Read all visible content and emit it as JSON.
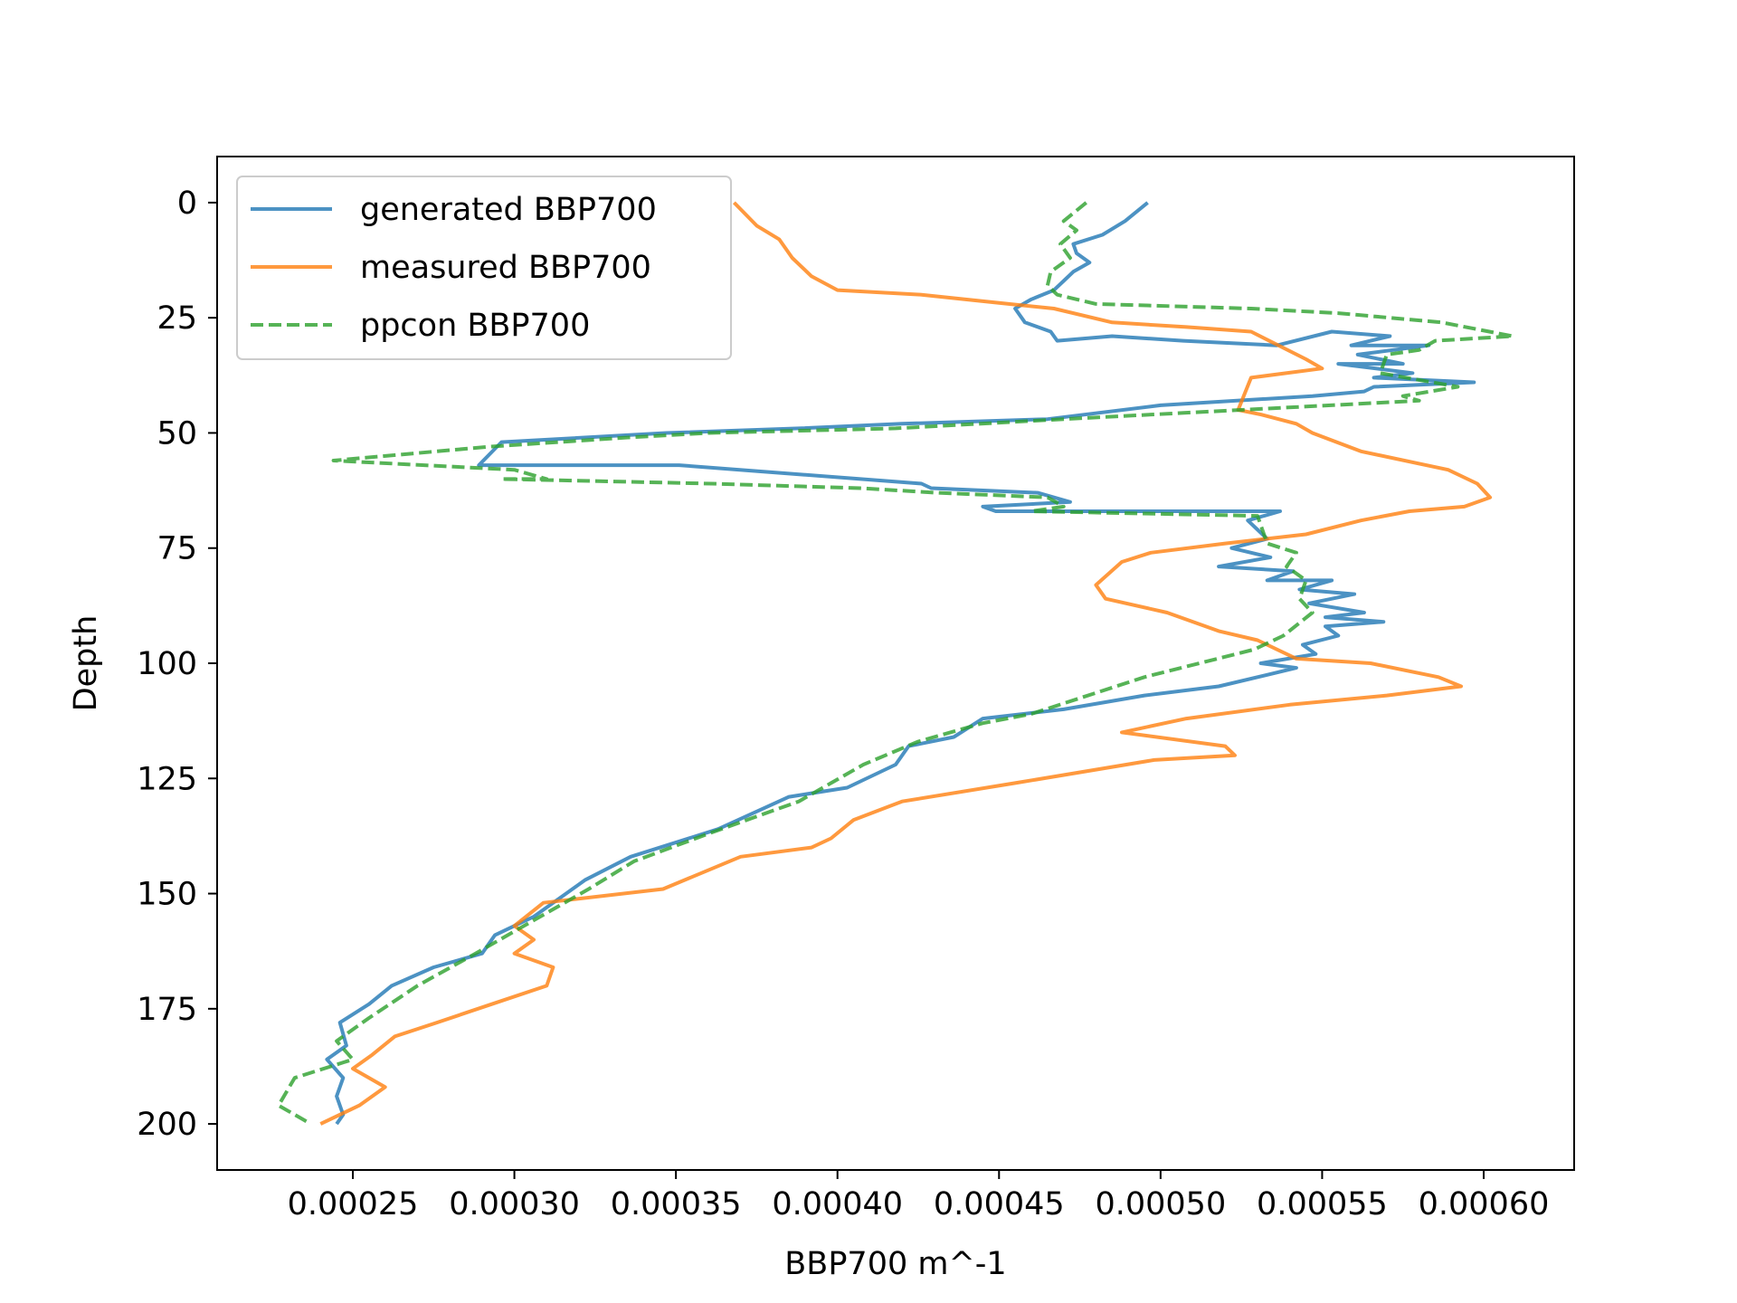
{
  "chart_data": {
    "type": "line",
    "title": "",
    "xlabel": "BBP700 m^-1",
    "ylabel": "Depth",
    "xlim": [
      0.000208,
      0.000628
    ],
    "ylim": [
      210,
      -10
    ],
    "y_inverted": true,
    "xticks": [
      0.00025,
      0.0003,
      0.00035,
      0.0004,
      0.00045,
      0.0005,
      0.00055,
      0.0006
    ],
    "xtick_labels": [
      "0.00025",
      "0.00030",
      "0.00035",
      "0.00040",
      "0.00045",
      "0.00050",
      "0.00055",
      "0.00060"
    ],
    "yticks": [
      0,
      25,
      50,
      75,
      100,
      125,
      150,
      175,
      200
    ],
    "ytick_labels": [
      "0",
      "25",
      "50",
      "75",
      "100",
      "125",
      "150",
      "175",
      "200"
    ],
    "grid": false,
    "legend_position": "upper-left",
    "series": [
      {
        "name": "generated BBP700",
        "color": "#1f77b4",
        "style": "solid",
        "x": [
          0.000496,
          0.000489,
          0.000482,
          0.000473,
          0.000474,
          0.000478,
          0.000473,
          0.00047,
          0.000467,
          0.00046,
          0.000455,
          0.000458,
          0.000466,
          0.000468,
          0.000485,
          0.000507,
          0.000536,
          0.000553,
          0.000571,
          0.000559,
          0.000583,
          0.000561,
          0.000575,
          0.000555,
          0.000578,
          0.000566,
          0.000597,
          0.000566,
          0.000563,
          0.000547,
          0.0005,
          0.000465,
          0.00042,
          0.000388,
          0.000347,
          0.000296,
          0.000289,
          0.000351,
          0.000426,
          0.000429,
          0.000462,
          0.000472,
          0.000445,
          0.000449,
          0.000537,
          0.000527,
          0.000533,
          0.000522,
          0.000534,
          0.000518,
          0.000541,
          0.000533,
          0.000553,
          0.000543,
          0.00056,
          0.000546,
          0.000563,
          0.000551,
          0.000569,
          0.000551,
          0.000555,
          0.000544,
          0.000548,
          0.000531,
          0.000542,
          0.000518,
          0.000495,
          0.00047,
          0.000445,
          0.000436,
          0.000422,
          0.000418,
          0.000403,
          0.000385,
          0.000363,
          0.000336,
          0.000322,
          0.000314,
          0.000306,
          0.000294,
          0.00029,
          0.000275,
          0.000262,
          0.000255,
          0.000246,
          0.000248,
          0.000242,
          0.000247,
          0.000245,
          0.000247,
          0.000245
        ],
        "y": [
          0,
          4,
          7,
          9,
          11,
          13,
          15,
          17,
          19,
          21,
          23,
          26,
          28,
          30,
          29,
          30,
          31,
          28,
          29,
          31,
          31,
          33,
          35,
          35,
          37,
          38,
          39,
          40,
          41,
          42,
          44,
          47,
          48,
          49,
          50,
          52,
          57,
          57,
          61,
          62,
          63,
          65,
          66,
          67,
          67,
          69,
          73,
          75,
          77,
          79,
          80,
          82,
          82,
          84,
          85,
          87,
          89,
          90,
          91,
          92,
          94,
          96,
          98,
          100,
          101,
          105,
          107,
          110,
          112,
          116,
          118,
          122,
          127,
          129,
          136,
          142,
          147,
          151,
          155,
          159,
          163,
          166,
          170,
          174,
          178,
          183,
          186,
          190,
          194,
          198,
          200
        ]
      },
      {
        "name": "measured BBP700",
        "color": "#ff7f0e",
        "style": "solid",
        "x": [
          0.000368,
          0.000375,
          0.000382,
          0.000386,
          0.000392,
          0.0004,
          0.000426,
          0.000453,
          0.000467,
          0.000485,
          0.000508,
          0.000528,
          0.000545,
          0.00055,
          0.000528,
          0.000524,
          0.000531,
          0.000542,
          0.000547,
          0.000562,
          0.000589,
          0.000598,
          0.000602,
          0.000594,
          0.000577,
          0.000562,
          0.000545,
          0.00052,
          0.000497,
          0.000488,
          0.00048,
          0.000483,
          0.000502,
          0.000518,
          0.00053,
          0.000542,
          0.000565,
          0.000586,
          0.000593,
          0.00057,
          0.00054,
          0.000508,
          0.000488,
          0.00052,
          0.000523,
          0.000498,
          0.000455,
          0.00042,
          0.000405,
          0.000398,
          0.000392,
          0.00037,
          0.000346,
          0.000309,
          0.0003,
          0.000306,
          0.0003,
          0.000312,
          0.00031,
          0.000293,
          0.000276,
          0.000263,
          0.000256,
          0.00025,
          0.00026,
          0.000252,
          0.00024
        ],
        "y": [
          0,
          5,
          8,
          12,
          16,
          19,
          20,
          22,
          23,
          26,
          27,
          28,
          34,
          36,
          38,
          45,
          46,
          48,
          50,
          54,
          58,
          61,
          64,
          66,
          67,
          69,
          72,
          74,
          76,
          78,
          83,
          86,
          89,
          93,
          95,
          99,
          100,
          103,
          105,
          107,
          109,
          112,
          115,
          118,
          120,
          121,
          126,
          130,
          134,
          138,
          140,
          142,
          149,
          152,
          157,
          160,
          163,
          166,
          170,
          174,
          178,
          181,
          185,
          188,
          192,
          196,
          200
        ]
      },
      {
        "name": "ppcon BBP700",
        "color": "#2ca02c",
        "style": "dashed",
        "x": [
          0.000477,
          0.00047,
          0.000474,
          0.000469,
          0.000472,
          0.000466,
          0.000465,
          0.000468,
          0.00048,
          0.000528,
          0.000555,
          0.000587,
          0.000609,
          0.000585,
          0.00058,
          0.00057,
          0.000568,
          0.000592,
          0.000575,
          0.00058,
          0.000525,
          0.00047,
          0.000418,
          0.00036,
          0.000335,
          0.000292,
          0.000244,
          0.0003,
          0.00031,
          0.000296,
          0.000361,
          0.000407,
          0.000431,
          0.000465,
          0.00047,
          0.00046,
          0.00053,
          0.000533,
          0.000542,
          0.000539,
          0.000545,
          0.000543,
          0.000547,
          0.000538,
          0.000529,
          0.000495,
          0.00046,
          0.000445,
          0.000425,
          0.000408,
          0.000398,
          0.000388,
          0.00036,
          0.000337,
          0.000323,
          0.000308,
          0.000288,
          0.00027,
          0.000255,
          0.000245,
          0.00025,
          0.000232,
          0.000227,
          0.000237
        ],
        "y": [
          0,
          4,
          6,
          9,
          12,
          15,
          18,
          20,
          22,
          23,
          24,
          26,
          29,
          30,
          32,
          33,
          37,
          40,
          42,
          43,
          45,
          47,
          49,
          50,
          51,
          53,
          56,
          58,
          60,
          60,
          61,
          62,
          63,
          64,
          66,
          67,
          68,
          74,
          76,
          79,
          82,
          86,
          89,
          94,
          97,
          103,
          111,
          113,
          117,
          122,
          126,
          130,
          137,
          143,
          149,
          155,
          163,
          170,
          177,
          182,
          186,
          190,
          196,
          200
        ]
      }
    ]
  }
}
